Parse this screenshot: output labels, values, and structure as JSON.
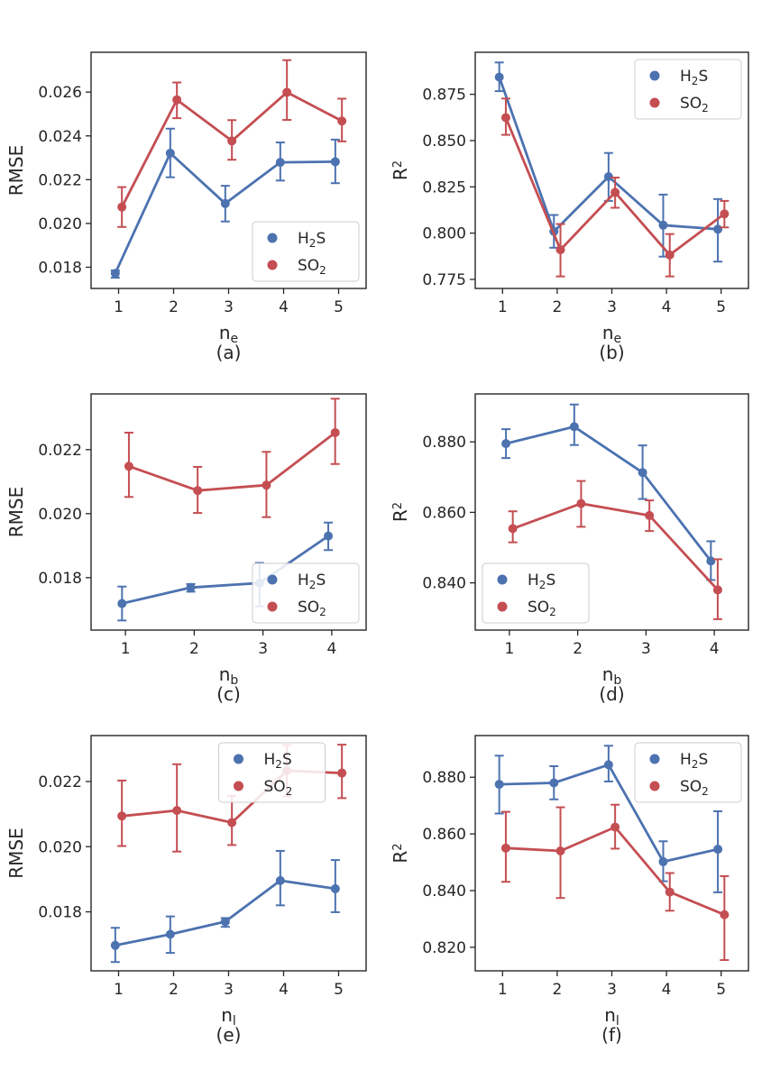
{
  "colors": {
    "h2s": "#4c72b0",
    "so2": "#c44e52",
    "axes": "#262626",
    "legend_border": "#cccccc"
  },
  "chart_data": [
    {
      "id": "a",
      "type": "line",
      "panel_label": "(a)",
      "xlabel": "n",
      "xlabel_sub": "e",
      "ylabel": "RMSE",
      "ylabel_sup": "",
      "x": [
        1,
        2,
        3,
        4,
        5
      ],
      "xlim": [
        0.5,
        5.5
      ],
      "ylim": [
        0.01703,
        0.02782
      ],
      "yticks": [
        0.018,
        0.02,
        0.022,
        0.024,
        0.026
      ],
      "yticklabels": [
        "0.018",
        "0.020",
        "0.022",
        "0.024",
        "0.026"
      ],
      "legend_loc": "lower-right",
      "series": [
        {
          "key": "h2s",
          "name": "H",
          "name_sub": "2",
          "name_rest": "S",
          "xoffset": -0.06,
          "values": [
            0.01772,
            0.02321,
            0.02091,
            0.02279,
            0.02282
          ],
          "err_low": [
            0.01752,
            0.02211,
            0.02009,
            0.02196,
            0.02184
          ],
          "err_high": [
            0.01785,
            0.02433,
            0.02172,
            0.0237,
            0.02383
          ]
        },
        {
          "key": "so2",
          "name": "SO",
          "name_sub": "2",
          "name_rest": "",
          "xoffset": 0.06,
          "values": [
            0.02075,
            0.02565,
            0.02377,
            0.02599,
            0.02468
          ],
          "err_low": [
            0.01984,
            0.02481,
            0.02291,
            0.02473,
            0.02375
          ],
          "err_high": [
            0.02166,
            0.02644,
            0.02472,
            0.02746,
            0.0257
          ]
        }
      ]
    },
    {
      "id": "b",
      "type": "line",
      "panel_label": "(b)",
      "xlabel": "n",
      "xlabel_sub": "e",
      "ylabel": "R",
      "ylabel_sup": "2",
      "x": [
        1,
        2,
        3,
        4,
        5
      ],
      "xlim": [
        0.5,
        5.5
      ],
      "ylim": [
        0.7701,
        0.8977
      ],
      "yticks": [
        0.775,
        0.8,
        0.825,
        0.85,
        0.875
      ],
      "yticklabels": [
        "0.775",
        "0.800",
        "0.825",
        "0.850",
        "0.875"
      ],
      "legend_loc": "top-right",
      "series": [
        {
          "key": "h2s",
          "name": "H",
          "name_sub": "2",
          "name_rest": "S",
          "xoffset": -0.06,
          "values": [
            0.8843,
            0.8009,
            0.8305,
            0.8043,
            0.8021
          ],
          "err_low": [
            0.8767,
            0.7921,
            0.8174,
            0.7873,
            0.7846
          ],
          "err_high": [
            0.8922,
            0.8098,
            0.8433,
            0.8208,
            0.8184
          ]
        },
        {
          "key": "so2",
          "name": "SO",
          "name_sub": "2",
          "name_rest": "",
          "xoffset": 0.06,
          "values": [
            0.8624,
            0.791,
            0.822,
            0.7882,
            0.8104
          ],
          "err_low": [
            0.8531,
            0.7766,
            0.8137,
            0.7766,
            0.8031
          ],
          "err_high": [
            0.8727,
            0.8049,
            0.83,
            0.7995,
            0.8174
          ]
        }
      ]
    },
    {
      "id": "c",
      "type": "line",
      "panel_label": "(c)",
      "xlabel": "n",
      "xlabel_sub": "b",
      "ylabel": "RMSE",
      "ylabel_sup": "",
      "x": [
        1,
        2,
        3,
        4
      ],
      "xlim": [
        0.5,
        4.5
      ],
      "ylim": [
        0.01636,
        0.02374
      ],
      "yticks": [
        0.018,
        0.02,
        0.022
      ],
      "yticklabels": [
        "0.018",
        "0.020",
        "0.022"
      ],
      "legend_loc": "lower-right",
      "series": [
        {
          "key": "h2s",
          "name": "H",
          "name_sub": "2",
          "name_rest": "S",
          "xoffset": -0.05,
          "values": [
            0.01719,
            0.01769,
            0.01783,
            0.0193
          ],
          "err_low": [
            0.01666,
            0.01756,
            0.0171,
            0.01886
          ],
          "err_high": [
            0.01772,
            0.0178,
            0.01846,
            0.01972
          ]
        },
        {
          "key": "so2",
          "name": "SO",
          "name_sub": "2",
          "name_rest": "",
          "xoffset": 0.05,
          "values": [
            0.02148,
            0.02072,
            0.02089,
            0.02253
          ],
          "err_low": [
            0.02052,
            0.02002,
            0.01989,
            0.02155
          ],
          "err_high": [
            0.02253,
            0.02146,
            0.02193,
            0.02359
          ]
        }
      ]
    },
    {
      "id": "d",
      "type": "line",
      "panel_label": "(d)",
      "xlabel": "n",
      "xlabel_sub": "b",
      "ylabel": "R",
      "ylabel_sup": "2",
      "x": [
        1,
        2,
        3,
        4
      ],
      "xlim": [
        0.5,
        4.5
      ],
      "ylim": [
        0.8266,
        0.8936
      ],
      "yticks": [
        0.84,
        0.86,
        0.88
      ],
      "yticklabels": [
        "0.840",
        "0.860",
        "0.880"
      ],
      "legend_loc": "lower-left",
      "series": [
        {
          "key": "h2s",
          "name": "H",
          "name_sub": "2",
          "name_rest": "S",
          "xoffset": -0.05,
          "values": [
            0.8795,
            0.8843,
            0.8713,
            0.8462
          ],
          "err_low": [
            0.8754,
            0.8791,
            0.8638,
            0.8408
          ],
          "err_high": [
            0.8836,
            0.8906,
            0.879,
            0.8518
          ]
        },
        {
          "key": "so2",
          "name": "SO",
          "name_sub": "2",
          "name_rest": "",
          "xoffset": 0.05,
          "values": [
            0.8554,
            0.8625,
            0.8591,
            0.838
          ],
          "err_low": [
            0.8515,
            0.8559,
            0.8547,
            0.8297
          ],
          "err_high": [
            0.8603,
            0.8689,
            0.8634,
            0.8467
          ]
        }
      ]
    },
    {
      "id": "e",
      "type": "line",
      "panel_label": "(e)",
      "xlabel": "n",
      "xlabel_sub": "l",
      "ylabel": "RMSE",
      "ylabel_sup": "",
      "x": [
        1,
        2,
        3,
        4,
        5
      ],
      "xlim": [
        0.5,
        5.5
      ],
      "ylim": [
        0.01619,
        0.02341
      ],
      "yticks": [
        0.018,
        0.02,
        0.022
      ],
      "yticklabels": [
        "0.018",
        "0.020",
        "0.022"
      ],
      "legend_loc": "top-center",
      "series": [
        {
          "key": "h2s",
          "name": "H",
          "name_sub": "2",
          "name_rest": "S",
          "xoffset": -0.06,
          "values": [
            0.01697,
            0.01731,
            0.0177,
            0.01896,
            0.01871
          ],
          "err_low": [
            0.01646,
            0.01674,
            0.01754,
            0.0182,
            0.01799
          ],
          "err_high": [
            0.01751,
            0.01786,
            0.01781,
            0.01987,
            0.01959
          ]
        },
        {
          "key": "so2",
          "name": "SO",
          "name_sub": "2",
          "name_rest": "",
          "xoffset": 0.06,
          "values": [
            0.02094,
            0.02111,
            0.02074,
            0.02233,
            0.02226
          ],
          "err_low": [
            0.02002,
            0.01985,
            0.02005,
            0.02154,
            0.02149
          ],
          "err_high": [
            0.02203,
            0.02253,
            0.02156,
            0.02312,
            0.02313
          ]
        }
      ]
    },
    {
      "id": "f",
      "type": "line",
      "panel_label": "(f)",
      "xlabel": "n",
      "xlabel_sub": "l",
      "ylabel": "R",
      "ylabel_sup": "2",
      "x": [
        1,
        2,
        3,
        4,
        5
      ],
      "xlim": [
        0.5,
        5.5
      ],
      "ylim": [
        0.8117,
        0.8947
      ],
      "yticks": [
        0.82,
        0.84,
        0.86,
        0.88
      ],
      "yticklabels": [
        "0.820",
        "0.840",
        "0.860",
        "0.880"
      ],
      "legend_loc": "top-right",
      "series": [
        {
          "key": "h2s",
          "name": "H",
          "name_sub": "2",
          "name_rest": "S",
          "xoffset": -0.06,
          "values": [
            0.8775,
            0.878,
            0.8844,
            0.8502,
            0.8546
          ],
          "err_low": [
            0.8672,
            0.8722,
            0.8785,
            0.8433,
            0.8394
          ],
          "err_high": [
            0.8876,
            0.8839,
            0.8911,
            0.8574,
            0.868
          ]
        },
        {
          "key": "so2",
          "name": "SO",
          "name_sub": "2",
          "name_rest": "",
          "xoffset": 0.06,
          "values": [
            0.855,
            0.854,
            0.8624,
            0.8395,
            0.8315
          ],
          "err_low": [
            0.8431,
            0.8374,
            0.8548,
            0.8329,
            0.8155
          ],
          "err_high": [
            0.8678,
            0.8694,
            0.8703,
            0.8462,
            0.8451
          ]
        }
      ]
    }
  ]
}
